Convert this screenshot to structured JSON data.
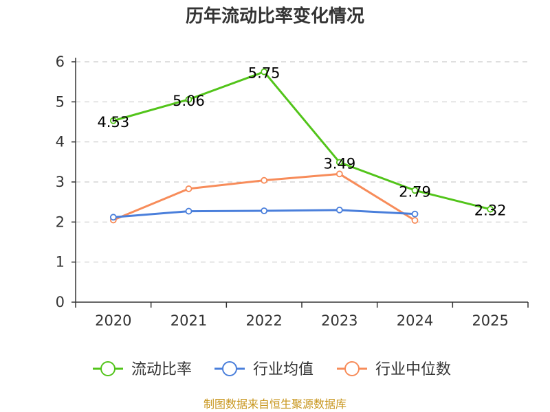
{
  "chart_data": {
    "type": "line",
    "title": "历年流动比率变化情况",
    "categories": [
      "2020",
      "2021",
      "2022",
      "2023",
      "2024",
      "2025"
    ],
    "ylim": [
      0,
      6
    ],
    "yticks": [
      "0",
      "1",
      "2",
      "3",
      "4",
      "5",
      "6"
    ],
    "grid": true,
    "legend_position": "bottom",
    "series": [
      {
        "name": "流动比率",
        "color": "#52c41a",
        "values": [
          4.53,
          5.06,
          5.75,
          3.49,
          2.79,
          2.32
        ],
        "labels": [
          "4.53",
          "5.06",
          "5.75",
          "3.49",
          "2.79",
          "2.32"
        ]
      },
      {
        "name": "行业均值",
        "color": "#4a7fdb",
        "values": [
          2.12,
          2.27,
          2.28,
          2.3,
          2.2,
          null
        ]
      },
      {
        "name": "行业中位数",
        "color": "#f78c5a",
        "values": [
          2.05,
          2.83,
          3.04,
          3.2,
          2.04,
          null
        ]
      }
    ]
  },
  "source": "制图数据来自恒生聚源数据库"
}
